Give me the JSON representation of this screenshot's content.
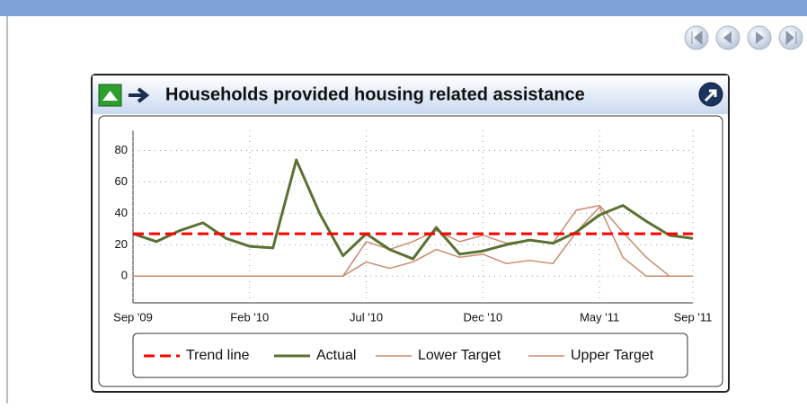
{
  "chart_data": {
    "type": "line",
    "title": "Households provided housing related assistance",
    "categories": [
      "Sep '09",
      null,
      null,
      null,
      null,
      "Feb '10",
      null,
      null,
      null,
      null,
      "Jul '10",
      null,
      null,
      null,
      null,
      "Dec '10",
      null,
      null,
      null,
      null,
      "May '11",
      null,
      null,
      null,
      "Sep '11"
    ],
    "series": [
      {
        "name": "Trend line",
        "color": "#ff0000",
        "dashed": true,
        "values": [
          27,
          27,
          27,
          27,
          27,
          27,
          27,
          27,
          27,
          27,
          27,
          27,
          27,
          27,
          27,
          27,
          27,
          27,
          27,
          27,
          27,
          27,
          27,
          27,
          27
        ]
      },
      {
        "name": "Actual",
        "color": "#5b7132",
        "values": [
          27,
          22,
          29,
          34,
          24,
          19,
          18,
          74,
          40,
          13,
          27,
          17,
          11,
          31,
          14,
          16,
          20,
          23,
          21,
          28,
          39,
          45,
          35,
          26,
          24
        ]
      },
      {
        "name": "Lower Target",
        "color": "#c98a6e",
        "values": [
          0,
          0,
          0,
          0,
          0,
          0,
          0,
          0,
          0,
          0,
          9,
          5,
          9,
          17,
          12,
          14,
          8,
          10,
          8,
          28,
          44,
          12,
          0,
          0,
          0
        ]
      },
      {
        "name": "Upper Target",
        "color": "#c98a6e",
        "values": [
          0,
          0,
          0,
          0,
          0,
          0,
          0,
          0,
          0,
          0,
          22,
          17,
          22,
          29,
          22,
          26,
          21,
          23,
          21,
          42,
          45,
          28,
          12,
          0,
          0
        ]
      }
    ],
    "ylim": [
      -17,
      90
    ],
    "yticks": [
      0,
      20,
      40,
      60,
      80
    ],
    "grid": true
  }
}
